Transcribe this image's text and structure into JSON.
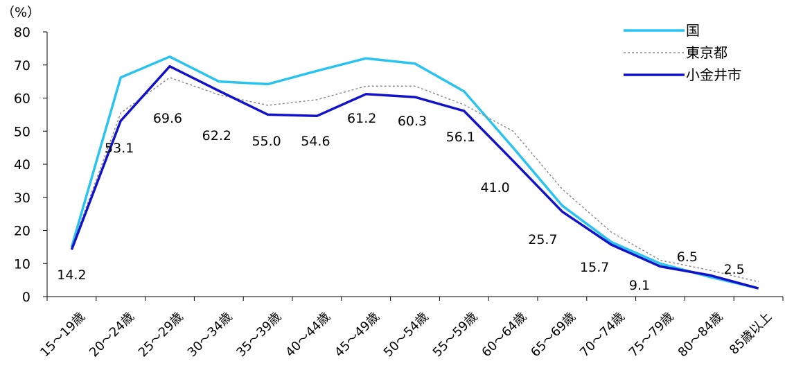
{
  "chart_data": {
    "type": "line",
    "unit_label": "（%）",
    "categories": [
      "15～19歳",
      "20～24歳",
      "25～29歳",
      "30～34歳",
      "35～39歳",
      "40～44歳",
      "45～49歳",
      "50～54歳",
      "55～59歳",
      "60～64歳",
      "65～69歳",
      "70～74歳",
      "75～79歳",
      "80～84歳",
      "85歳以上"
    ],
    "ylim": [
      0,
      80
    ],
    "yticks": [
      0,
      10,
      20,
      30,
      40,
      50,
      60,
      70,
      80
    ],
    "grid": false,
    "legend_position": "top-right",
    "series": [
      {
        "name": "国",
        "color": "#29c3f0",
        "style": "solid",
        "values": [
          15.0,
          66.2,
          72.5,
          65.0,
          64.2,
          68.2,
          72.0,
          70.4,
          62.0,
          45.0,
          27.5,
          16.5,
          10.0,
          6.0,
          2.5
        ]
      },
      {
        "name": "東京都",
        "color": "#8c8c8c",
        "style": "dotted",
        "values": [
          15.0,
          55.5,
          66.2,
          61.0,
          57.8,
          59.5,
          63.6,
          63.6,
          58.0,
          50.0,
          32.5,
          19.5,
          11.0,
          8.0,
          4.5
        ]
      },
      {
        "name": "小金井市",
        "color": "#1212c8",
        "style": "solid",
        "values": [
          14.2,
          53.1,
          69.6,
          62.2,
          55.0,
          54.6,
          61.2,
          60.3,
          56.1,
          41.0,
          25.7,
          15.7,
          9.1,
          6.5,
          2.5
        ]
      }
    ],
    "data_labels": [
      "14.2",
      "53.1",
      "69.6",
      "62.2",
      "55.0",
      "54.6",
      "61.2",
      "60.3",
      "56.1",
      "41.0",
      "25.7",
      "15.7",
      "9.1",
      "6.5",
      "2.5"
    ]
  }
}
